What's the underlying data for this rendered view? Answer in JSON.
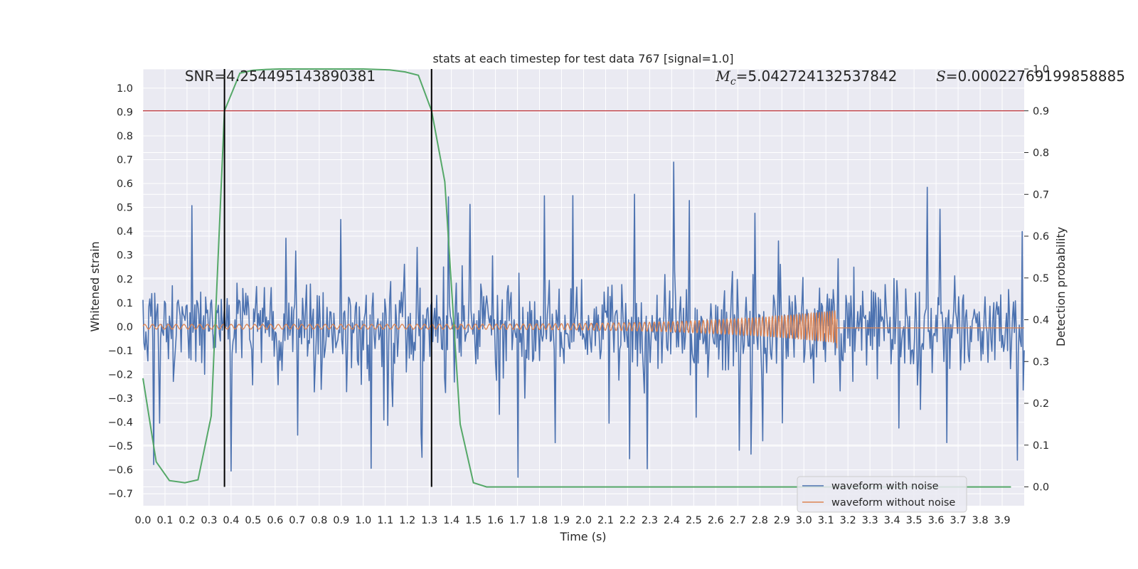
{
  "chart_data": {
    "type": "line",
    "title": "stats at each timestep for test data 767 [signal=1.0]",
    "xlabel": "Time (s)",
    "ylabel": "Whitened strain",
    "y2label": "Detection probability",
    "xlim": [
      0.0,
      4.0
    ],
    "ylim": [
      -0.75,
      1.08
    ],
    "y2lim": [
      -0.045,
      1.0
    ],
    "xticks": [
      0.0,
      0.1,
      0.2,
      0.3,
      0.4,
      0.5,
      0.6,
      0.7,
      0.8,
      0.9,
      1.0,
      1.1,
      1.2,
      1.3,
      1.4,
      1.5,
      1.6,
      1.7,
      1.8,
      1.9,
      2.0,
      2.1,
      2.2,
      2.3,
      2.4,
      2.5,
      2.6,
      2.7,
      2.8,
      2.9,
      3.0,
      3.1,
      3.2,
      3.3,
      3.4,
      3.5,
      3.6,
      3.7,
      3.8,
      3.9
    ],
    "xtick_labels": [
      "0.0",
      "0.1",
      "0.2",
      "0.3",
      "0.4",
      "0.5",
      "0.6",
      "0.7",
      "0.8",
      "0.9",
      "1.0",
      "1.1",
      "1.2",
      "1.3",
      "1.4",
      "1.5",
      "1.6",
      "1.7",
      "1.8",
      "1.9",
      "2.0",
      "2.1",
      "2.2",
      "2.3",
      "2.4",
      "2.5",
      "2.6",
      "2.7",
      "2.8",
      "2.9",
      "3.0",
      "3.1",
      "3.2",
      "3.3",
      "3.4",
      "3.5",
      "3.6",
      "3.7",
      "3.8",
      "3.9"
    ],
    "yticks": [
      1.0,
      0.9,
      0.8,
      0.7,
      0.6,
      0.5,
      0.4,
      0.3,
      0.2,
      0.1,
      0.0,
      -0.1,
      -0.2,
      -0.3,
      -0.4,
      -0.5,
      -0.6,
      -0.7
    ],
    "ytick_labels": [
      "1.0",
      "0.9",
      "0.8",
      "0.7",
      "0.6",
      "0.5",
      "0.4",
      "0.3",
      "0.2",
      "0.1",
      "0.0",
      "−0.1",
      "−0.2",
      "−0.3",
      "−0.4",
      "−0.5",
      "−0.6",
      "−0.7"
    ],
    "y2ticks": [
      1.0,
      0.9,
      0.8,
      0.7,
      0.6,
      0.5,
      0.4,
      0.3,
      0.2,
      0.1,
      0.0
    ],
    "y2tick_labels": [
      "1.0",
      "0.9",
      "0.8",
      "0.7",
      "0.6",
      "0.5",
      "0.4",
      "0.3",
      "0.2",
      "0.1",
      "0.0"
    ],
    "grid": true,
    "legend_position": "bottom-right",
    "series": [
      {
        "name": "waveform with noise",
        "axis": "left",
        "color": "#4c72b0",
        "style": "noise",
        "n_samples": 900,
        "amplitude_peak": 0.69,
        "amplitude_trough": -0.65
      },
      {
        "name": "waveform without noise",
        "axis": "left",
        "color": "#dd8452",
        "style": "chirp",
        "t_start": 0.0,
        "t_merger": 3.15,
        "amplitude_start": 0.01,
        "amplitude_peak": 0.07
      },
      {
        "name": "",
        "axis": "right",
        "color": "#55a868",
        "style": "line",
        "points": [
          [
            0.0,
            0.26
          ],
          [
            0.06,
            0.06
          ],
          [
            0.12,
            0.015
          ],
          [
            0.19,
            0.01
          ],
          [
            0.25,
            0.017
          ],
          [
            0.31,
            0.17
          ],
          [
            0.37,
            0.9
          ],
          [
            0.44,
            0.99
          ],
          [
            0.5,
            0.997
          ],
          [
            0.56,
            0.999
          ],
          [
            0.62,
            1.0
          ],
          [
            0.69,
            1.0
          ],
          [
            0.75,
            1.0
          ],
          [
            0.81,
            1.0
          ],
          [
            0.87,
            1.0
          ],
          [
            0.94,
            1.0
          ],
          [
            1.0,
            1.0
          ],
          [
            1.06,
            0.999
          ],
          [
            1.12,
            0.998
          ],
          [
            1.19,
            0.993
          ],
          [
            1.25,
            0.985
          ],
          [
            1.31,
            0.9
          ],
          [
            1.37,
            0.73
          ],
          [
            1.44,
            0.15
          ],
          [
            1.5,
            0.01
          ],
          [
            1.56,
            0.0
          ],
          [
            1.62,
            0.0
          ],
          [
            2.0,
            0.0
          ],
          [
            2.5,
            0.0
          ],
          [
            3.0,
            0.0
          ],
          [
            3.5,
            0.0
          ],
          [
            3.94,
            0.0
          ]
        ]
      }
    ],
    "vlines": [
      {
        "x": 0.37,
        "color": "#000000"
      },
      {
        "x": 1.31,
        "color": "#000000"
      }
    ],
    "hlines": [
      {
        "axis": "right",
        "y": 0.9,
        "color": "#c44e52"
      }
    ],
    "annotations": [
      {
        "id": "snr",
        "text": "SNR=4.254495143890381",
        "x": 0.19,
        "y": 1.03
      },
      {
        "id": "mc",
        "prefix_math": "M",
        "prefix_sub": "c",
        "text": "=5.042724132537842",
        "x": 2.6,
        "y": 1.03
      },
      {
        "id": "s",
        "prefix_math": "S",
        "text": "=0.00022769199858885",
        "x": 3.6,
        "y": 1.03
      }
    ]
  }
}
